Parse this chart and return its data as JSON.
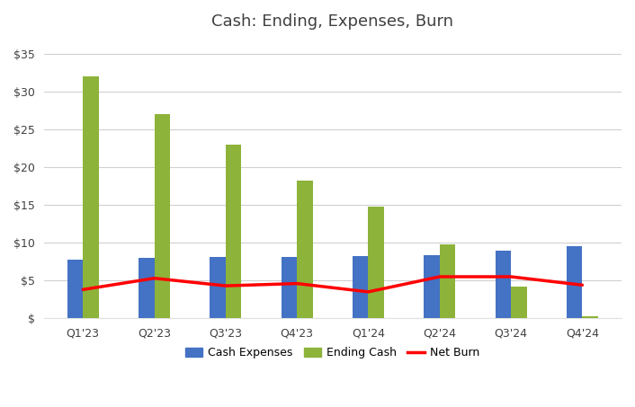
{
  "title": "Cash: Ending, Expenses, Burn",
  "categories": [
    "Q1'23",
    "Q2'23",
    "Q3'23",
    "Q4'23",
    "Q1'24",
    "Q2'24",
    "Q3'24",
    "Q4'24"
  ],
  "cash_expenses": [
    7.7,
    8.0,
    8.1,
    8.1,
    8.2,
    8.4,
    9.0,
    9.5
  ],
  "ending_cash": [
    32.0,
    27.0,
    23.0,
    18.2,
    14.8,
    9.8,
    4.2,
    0.3
  ],
  "net_burn": [
    3.8,
    5.3,
    4.3,
    4.6,
    3.5,
    5.5,
    5.5,
    4.4
  ],
  "bar_width": 0.22,
  "cash_expenses_color": "#4472C4",
  "ending_cash_color": "#8DB33A",
  "net_burn_color": "#FF0000",
  "yticks": [
    0,
    5,
    10,
    15,
    20,
    25,
    30,
    35
  ],
  "ytick_labels": [
    "$",
    "$5",
    "$10",
    "$15",
    "$20",
    "$25",
    "$30",
    "$35"
  ],
  "ylim": [
    0,
    37
  ],
  "background_color": "#FFFFFF",
  "grid_color": "#D0D0D0",
  "title_fontsize": 13,
  "legend_fontsize": 9,
  "tick_fontsize": 9,
  "title_color": "#404040"
}
